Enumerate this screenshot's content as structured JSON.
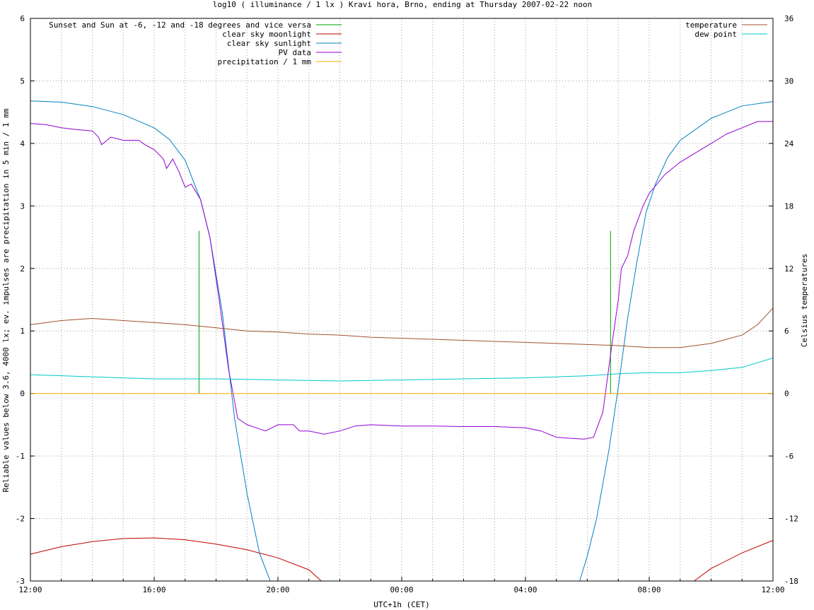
{
  "chart_data": {
    "type": "line",
    "title": "log10 ( illuminance / 1 lx ) Kravi hora, Brno, ending at Thursday 2007-02-22 noon",
    "xlabel": "UTC+1h (CET)",
    "ylabel": "Reliable values below 3.6, 4000 lx; ev. impulses are precipitation in 5 min / 1 mm",
    "y2label": "Celsius temperatures",
    "x_unit": "hours since 2007-02-21 12:00 UTC+1h",
    "xlim": [
      0,
      24
    ],
    "ylim": [
      -3,
      6
    ],
    "y2lim": [
      -18,
      36
    ],
    "x_ticks": [
      {
        "v": 0,
        "label": "12:00"
      },
      {
        "v": 4,
        "label": "16:00"
      },
      {
        "v": 8,
        "label": "20:00"
      },
      {
        "v": 12,
        "label": "00:00"
      },
      {
        "v": 16,
        "label": "04:00"
      },
      {
        "v": 20,
        "label": "08:00"
      },
      {
        "v": 24,
        "label": "12:00"
      }
    ],
    "y_ticks": [
      {
        "v": -3,
        "label": "-3"
      },
      {
        "v": -2,
        "label": "-2"
      },
      {
        "v": -1,
        "label": "-1"
      },
      {
        "v": 0,
        "label": "0"
      },
      {
        "v": 1,
        "label": "1"
      },
      {
        "v": 2,
        "label": "2"
      },
      {
        "v": 3,
        "label": "3"
      },
      {
        "v": 4,
        "label": "4"
      },
      {
        "v": 5,
        "label": "5"
      },
      {
        "v": 6,
        "label": "6"
      }
    ],
    "y2_ticks": [
      {
        "v": -18,
        "label": "-18"
      },
      {
        "v": -12,
        "label": "-12"
      },
      {
        "v": -6,
        "label": "-6"
      },
      {
        "v": 0,
        "label": "0"
      },
      {
        "v": 6,
        "label": "6"
      },
      {
        "v": 12,
        "label": "12"
      },
      {
        "v": 18,
        "label": "18"
      },
      {
        "v": 24,
        "label": "24"
      },
      {
        "v": 30,
        "label": "30"
      },
      {
        "v": 36,
        "label": "36"
      }
    ],
    "grid": true,
    "legend_left_position": "top-left",
    "legend_right_position": "top-right",
    "series": [
      {
        "name": "Sunset and Sun at -6, -12 and -18 degrees and vice versa",
        "color": "#00a000",
        "kind": "impulses",
        "axis": "y",
        "points": [
          [
            5.45,
            2.6
          ],
          [
            6.05,
            0
          ],
          [
            6.6,
            0
          ],
          [
            7.2,
            0
          ],
          [
            17.0,
            0
          ],
          [
            17.6,
            0
          ],
          [
            18.2,
            0
          ],
          [
            18.75,
            2.6
          ]
        ]
      },
      {
        "name": "clear sky moonlight",
        "color": "#c00000",
        "kind": "line",
        "axis": "y",
        "points": [
          [
            0,
            -2.57
          ],
          [
            1,
            -2.45
          ],
          [
            2,
            -2.37
          ],
          [
            3,
            -2.32
          ],
          [
            4,
            -2.31
          ],
          [
            5,
            -2.34
          ],
          [
            6,
            -2.41
          ],
          [
            7,
            -2.5
          ],
          [
            8,
            -2.63
          ],
          [
            9,
            -2.82
          ],
          [
            9.4,
            -3.0
          ],
          [
            21.45,
            -3.0
          ],
          [
            22,
            -2.8
          ],
          [
            23,
            -2.55
          ],
          [
            24,
            -2.35
          ]
        ]
      },
      {
        "name": "clear sky sunlight",
        "color": "#0080c0",
        "kind": "line",
        "axis": "y",
        "points": [
          [
            0,
            4.68
          ],
          [
            1,
            4.66
          ],
          [
            2,
            4.59
          ],
          [
            3,
            4.46
          ],
          [
            4,
            4.25
          ],
          [
            4.5,
            4.06
          ],
          [
            5,
            3.73
          ],
          [
            5.5,
            3.1
          ],
          [
            5.8,
            2.5
          ],
          [
            6.2,
            1.3
          ],
          [
            6.6,
            -0.4
          ],
          [
            7.0,
            -1.6
          ],
          [
            7.4,
            -2.55
          ],
          [
            7.75,
            -3.0
          ],
          [
            17.75,
            -3.0
          ],
          [
            18.0,
            -2.6
          ],
          [
            18.3,
            -2.0
          ],
          [
            18.7,
            -0.9
          ],
          [
            19.0,
            0.1
          ],
          [
            19.3,
            1.2
          ],
          [
            19.6,
            2.1
          ],
          [
            19.9,
            2.9
          ],
          [
            20.2,
            3.35
          ],
          [
            20.6,
            3.78
          ],
          [
            21,
            4.05
          ],
          [
            22,
            4.4
          ],
          [
            23,
            4.6
          ],
          [
            24,
            4.67
          ]
        ]
      },
      {
        "name": "PV data",
        "color": "#9400d3",
        "kind": "line",
        "axis": "y",
        "points": [
          [
            0,
            4.32
          ],
          [
            0.5,
            4.3
          ],
          [
            1,
            4.25
          ],
          [
            1.5,
            4.22
          ],
          [
            2,
            4.2
          ],
          [
            2.2,
            4.1
          ],
          [
            2.3,
            3.98
          ],
          [
            2.6,
            4.1
          ],
          [
            3,
            4.05
          ],
          [
            3.5,
            4.05
          ],
          [
            3.7,
            3.98
          ],
          [
            4,
            3.9
          ],
          [
            4.3,
            3.75
          ],
          [
            4.4,
            3.6
          ],
          [
            4.6,
            3.75
          ],
          [
            4.8,
            3.55
          ],
          [
            5,
            3.3
          ],
          [
            5.2,
            3.35
          ],
          [
            5.5,
            3.1
          ],
          [
            5.8,
            2.5
          ],
          [
            6.1,
            1.5
          ],
          [
            6.4,
            0.4
          ],
          [
            6.7,
            -0.4
          ],
          [
            7.0,
            -0.5
          ],
          [
            7.3,
            -0.55
          ],
          [
            7.6,
            -0.6
          ],
          [
            8.0,
            -0.5
          ],
          [
            8.5,
            -0.5
          ],
          [
            8.7,
            -0.6
          ],
          [
            9,
            -0.6
          ],
          [
            9.5,
            -0.65
          ],
          [
            10,
            -0.6
          ],
          [
            10.5,
            -0.52
          ],
          [
            11,
            -0.5
          ],
          [
            12,
            -0.52
          ],
          [
            13,
            -0.52
          ],
          [
            14,
            -0.53
          ],
          [
            15,
            -0.53
          ],
          [
            16,
            -0.55
          ],
          [
            16.5,
            -0.6
          ],
          [
            17,
            -0.7
          ],
          [
            17.5,
            -0.72
          ],
          [
            17.9,
            -0.73
          ],
          [
            18.2,
            -0.7
          ],
          [
            18.5,
            -0.3
          ],
          [
            18.8,
            0.8
          ],
          [
            19,
            1.5
          ],
          [
            19.1,
            2.0
          ],
          [
            19.3,
            2.2
          ],
          [
            19.5,
            2.6
          ],
          [
            19.8,
            3.0
          ],
          [
            20,
            3.2
          ],
          [
            20.5,
            3.5
          ],
          [
            21,
            3.7
          ],
          [
            21.5,
            3.85
          ],
          [
            22,
            4.0
          ],
          [
            22.5,
            4.15
          ],
          [
            23,
            4.25
          ],
          [
            23.5,
            4.35
          ],
          [
            24,
            4.35
          ]
        ]
      },
      {
        "name": "precipitation / 1 mm",
        "color": "#ffa500",
        "kind": "line",
        "axis": "y",
        "points": [
          [
            0,
            0
          ],
          [
            24,
            0
          ]
        ]
      },
      {
        "name": "temperature",
        "color": "#a0522d",
        "kind": "line",
        "axis": "y2",
        "points": [
          [
            0,
            6.6
          ],
          [
            1,
            7.0
          ],
          [
            2,
            7.2
          ],
          [
            3,
            7.0
          ],
          [
            4,
            6.8
          ],
          [
            5,
            6.6
          ],
          [
            6,
            6.3
          ],
          [
            7,
            6.0
          ],
          [
            8,
            5.9
          ],
          [
            9,
            5.7
          ],
          [
            10,
            5.6
          ],
          [
            11,
            5.4
          ],
          [
            12,
            5.3
          ],
          [
            13,
            5.2
          ],
          [
            14,
            5.1
          ],
          [
            15,
            5.0
          ],
          [
            16,
            4.9
          ],
          [
            17,
            4.8
          ],
          [
            18,
            4.7
          ],
          [
            19,
            4.6
          ],
          [
            20,
            4.4
          ],
          [
            21,
            4.4
          ],
          [
            22,
            4.8
          ],
          [
            23,
            5.6
          ],
          [
            23.5,
            6.6
          ],
          [
            24,
            8.2
          ]
        ]
      },
      {
        "name": "dew point",
        "color": "#00c8c8",
        "kind": "line",
        "axis": "y2",
        "points": [
          [
            0,
            1.8
          ],
          [
            1,
            1.7
          ],
          [
            2,
            1.6
          ],
          [
            3,
            1.5
          ],
          [
            4,
            1.4
          ],
          [
            6,
            1.4
          ],
          [
            8,
            1.3
          ],
          [
            10,
            1.2
          ],
          [
            12,
            1.3
          ],
          [
            14,
            1.4
          ],
          [
            16,
            1.5
          ],
          [
            18,
            1.7
          ],
          [
            19,
            1.9
          ],
          [
            20,
            2.0
          ],
          [
            21,
            2.0
          ],
          [
            22,
            2.2
          ],
          [
            23,
            2.5
          ],
          [
            24,
            3.4
          ]
        ]
      }
    ]
  }
}
